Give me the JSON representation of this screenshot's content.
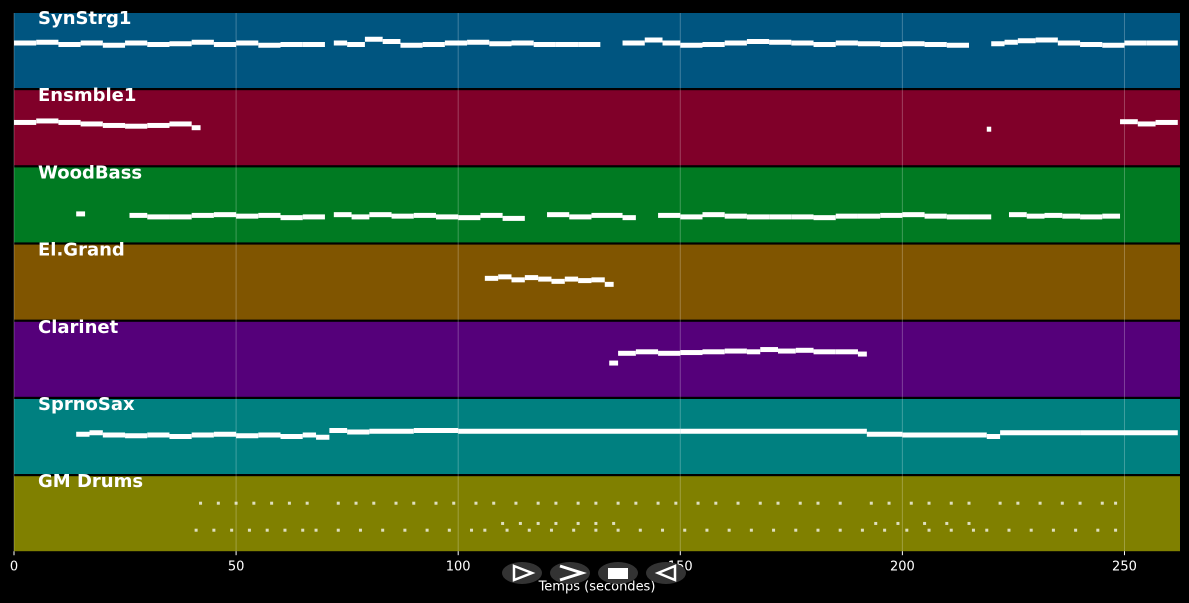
{
  "chart_data": {
    "type": "piano-roll",
    "xlabel": "Temps (secondes)",
    "xlim": [
      0,
      262.5
    ],
    "xticks": [
      0,
      50,
      100,
      150,
      200,
      250
    ],
    "grid": true,
    "tracks": [
      {
        "name": "SynStrg1",
        "color": "#005580",
        "style": "bars",
        "x": [
          0,
          5,
          10,
          15,
          20,
          25,
          30,
          35,
          40,
          45,
          50,
          55,
          60,
          65,
          70,
          72,
          75,
          79,
          83,
          87,
          92,
          97,
          102,
          107,
          112,
          117,
          122,
          127,
          132,
          137,
          142,
          146,
          150,
          155,
          160,
          165,
          170,
          175,
          180,
          185,
          190,
          195,
          200,
          205,
          210,
          215,
          220,
          223,
          226,
          230,
          235,
          240,
          245,
          250,
          255,
          262
        ],
        "y": [
          60,
          61,
          58,
          60,
          57,
          60,
          58,
          59,
          61,
          58,
          60,
          57,
          58,
          58,
          null,
          60,
          58,
          65,
          62,
          57,
          58,
          60,
          61,
          59,
          60,
          58,
          58,
          58,
          null,
          60,
          64,
          60,
          57,
          58,
          60,
          62,
          61,
          60,
          58,
          60,
          59,
          58,
          59,
          58,
          57,
          null,
          59,
          61,
          63,
          64,
          60,
          58,
          57,
          60,
          60,
          null
        ]
      },
      {
        "name": "Ensmble1",
        "color": "#800029",
        "style": "bars",
        "x": [
          0,
          5,
          10,
          15,
          20,
          25,
          30,
          35,
          40,
          42,
          219,
          220,
          249,
          253,
          257,
          262
        ],
        "y": [
          57,
          59,
          57,
          55,
          53,
          52,
          53,
          55,
          50,
          null,
          48,
          null,
          58,
          55,
          57,
          null
        ]
      },
      {
        "name": "WoodBass",
        "color": "#007a22",
        "style": "bars",
        "x": [
          14,
          16,
          26,
          30,
          35,
          40,
          45,
          50,
          55,
          60,
          65,
          70,
          72,
          76,
          80,
          85,
          90,
          95,
          100,
          105,
          110,
          115,
          120,
          125,
          130,
          137,
          140,
          145,
          150,
          155,
          160,
          165,
          170,
          175,
          180,
          185,
          190,
          195,
          200,
          205,
          210,
          215,
          220,
          224,
          228,
          232,
          236,
          240,
          245,
          249
        ],
        "y": [
          38,
          null,
          36,
          34,
          34,
          36,
          37,
          35,
          36,
          33,
          34,
          null,
          37,
          34,
          37,
          35,
          36,
          34,
          33,
          36,
          32,
          null,
          37,
          34,
          36,
          33,
          null,
          36,
          34,
          37,
          35,
          34,
          34,
          34,
          33,
          35,
          35,
          36,
          37,
          35,
          34,
          34,
          null,
          37,
          35,
          36,
          35,
          34,
          35,
          null
        ]
      },
      {
        "name": "El.Grand",
        "color": "#805500",
        "style": "bars",
        "x": [
          106,
          109,
          112,
          115,
          118,
          121,
          124,
          127,
          130,
          133,
          135
        ],
        "y": [
          55,
          57,
          53,
          56,
          54,
          51,
          54,
          52,
          53,
          47,
          null
        ]
      },
      {
        "name": "Clarinet",
        "color": "#55007a",
        "style": "bars",
        "x": [
          134,
          136,
          140,
          145,
          150,
          155,
          160,
          165,
          168,
          172,
          176,
          180,
          185,
          190,
          192
        ],
        "y": [
          45,
          58,
          60,
          58,
          59,
          60,
          61,
          60,
          63,
          61,
          62,
          60,
          60,
          57,
          null
        ]
      },
      {
        "name": "SprnoSax",
        "color": "#008080",
        "style": "bars",
        "x": [
          14,
          17,
          20,
          25,
          30,
          35,
          40,
          45,
          50,
          55,
          60,
          65,
          68,
          71,
          75,
          80,
          90,
          100,
          150,
          192,
          200,
          219,
          222,
          240,
          262
        ],
        "y": [
          53,
          55,
          52,
          51,
          52,
          50,
          52,
          53,
          51,
          52,
          50,
          52,
          49,
          58,
          56,
          57,
          58,
          57,
          57,
          53,
          52,
          50,
          55,
          55,
          null
        ]
      },
      {
        "name": "GM Drums",
        "color": "#808000",
        "style": "dots",
        "x": [
          42,
          46,
          50,
          54,
          58,
          62,
          66,
          73,
          77,
          81,
          86,
          90,
          95,
          99,
          104,
          108,
          113,
          118,
          122,
          127,
          131,
          136,
          140,
          145,
          149,
          154,
          158,
          163,
          168,
          172,
          177,
          181,
          186,
          193,
          197,
          202,
          206,
          211,
          215,
          222,
          226,
          231,
          236,
          240,
          245,
          248,
          41,
          45,
          49,
          53,
          57,
          61,
          65,
          68,
          73,
          78,
          83,
          88,
          93,
          98,
          103,
          106,
          111,
          116,
          121,
          126,
          131,
          136,
          141,
          146,
          151,
          156,
          161,
          166,
          171,
          176,
          181,
          186,
          191,
          196,
          201,
          206,
          211,
          216,
          219,
          224,
          229,
          234,
          239,
          244,
          248,
          110,
          114,
          118,
          122,
          127,
          131,
          135,
          194,
          199,
          205,
          210,
          215
        ],
        "y": [
          64,
          64,
          64,
          64,
          64,
          64,
          64,
          64,
          64,
          64,
          64,
          64,
          64,
          64,
          64,
          64,
          64,
          64,
          64,
          64,
          64,
          64,
          64,
          64,
          64,
          64,
          64,
          64,
          64,
          64,
          64,
          64,
          64,
          64,
          64,
          64,
          64,
          64,
          64,
          64,
          64,
          64,
          64,
          64,
          64,
          64,
          28,
          28,
          28,
          28,
          28,
          28,
          28,
          28,
          28,
          28,
          28,
          28,
          28,
          28,
          28,
          28,
          28,
          28,
          28,
          28,
          28,
          28,
          28,
          28,
          28,
          28,
          28,
          28,
          28,
          28,
          28,
          28,
          28,
          28,
          28,
          28,
          28,
          28,
          28,
          28,
          28,
          28,
          28,
          28,
          28,
          37,
          37,
          37,
          37,
          37,
          37,
          37,
          37,
          37,
          37,
          37,
          37
        ]
      }
    ]
  }
}
